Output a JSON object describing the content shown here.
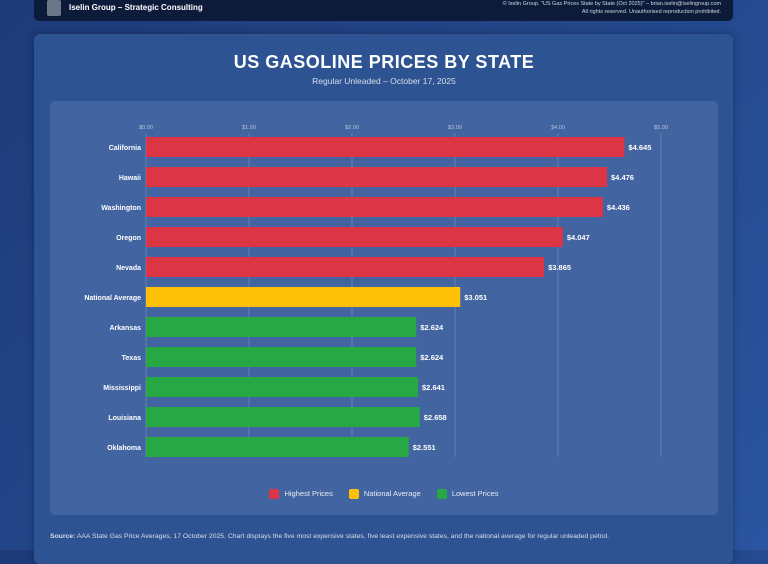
{
  "header": {
    "brand": "Iselin Group – Strategic Consulting",
    "copyright": "© Iselin Group. \"US Gas Prices State by State (Oct 2025)\" – brian.iselin@iselingroup.com",
    "rights": "All rights reserved. Unauthorised reproduction prohibited."
  },
  "chart_data": {
    "type": "bar",
    "orientation": "horizontal",
    "title": "US GASOLINE PRICES BY STATE",
    "subtitle": "Regular Unleaded – October 17, 2025",
    "categories": [
      "California",
      "Hawaii",
      "Washington",
      "Oregon",
      "Nevada",
      "National Average",
      "Arkansas",
      "Texas",
      "Mississippi",
      "Louisiana",
      "Oklahoma"
    ],
    "values": [
      4.645,
      4.476,
      4.436,
      4.047,
      3.865,
      3.051,
      2.624,
      2.624,
      2.641,
      2.658,
      2.551
    ],
    "labels": [
      "$4.645",
      "$4.476",
      "$4.436",
      "$4.047",
      "$3.865",
      "$3.051",
      "$2.624",
      "$2.624",
      "$2.641",
      "$2.658",
      "$2.551"
    ],
    "groups": [
      "high",
      "high",
      "high",
      "high",
      "high",
      "avg",
      "low",
      "low",
      "low",
      "low",
      "low"
    ],
    "xlim": [
      0,
      5
    ],
    "xticks": [
      "$0.00",
      "$1.00",
      "$2.00",
      "$3.00",
      "$4.00",
      "$5.00"
    ],
    "grid": true,
    "legend_position": "bottom",
    "legend": [
      {
        "key": "high",
        "label": "Highest Prices",
        "color": "#dc3545"
      },
      {
        "key": "avg",
        "label": "National Average",
        "color": "#ffc107"
      },
      {
        "key": "low",
        "label": "Lowest Prices",
        "color": "#28a745"
      }
    ]
  },
  "source": {
    "label": "Source:",
    "text": " AAA State Gas Price Averages, 17 October 2025. Chart displays the five most expensive states, five least expensive states, and the national average for regular unleaded petrol."
  }
}
